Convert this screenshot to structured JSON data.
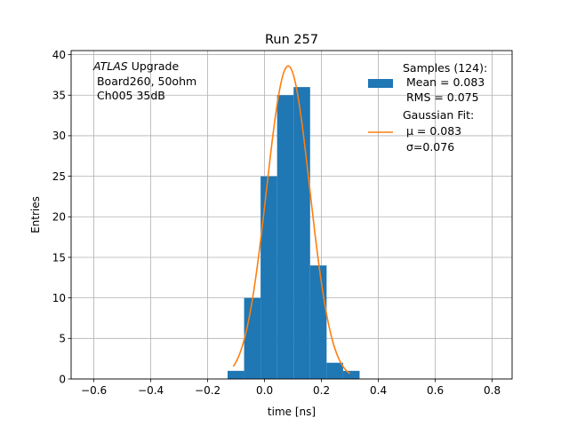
{
  "chart_data": {
    "type": "bar",
    "title": "Run 257",
    "xlabel": "time [ns]",
    "ylabel": "Entries",
    "xlim": [
      -0.68,
      0.87
    ],
    "ylim": [
      0,
      40.5
    ],
    "grid": true,
    "xticks": [
      -0.6,
      -0.4,
      -0.2,
      0.0,
      0.2,
      0.4,
      0.6,
      0.8
    ],
    "xtick_labels": [
      "−0.6",
      "−0.4",
      "−0.2",
      "0.0",
      "0.2",
      "0.4",
      "0.6",
      "0.8"
    ],
    "yticks": [
      0,
      5,
      10,
      15,
      20,
      25,
      30,
      35,
      40
    ],
    "yticks_labels": [
      "0",
      "5",
      "10",
      "15",
      "20",
      "25",
      "30",
      "35",
      "40"
    ],
    "annotation": {
      "italic": "ATLAS",
      "line1_rest": " Upgrade",
      "line2": " Board260, 50ohm",
      "line3": " Ch005 35dB"
    },
    "legend": {
      "placement": "top-right",
      "hist_lines": [
        "Samples (124):",
        " Mean = 0.083",
        " RMS = 0.075"
      ],
      "fit_lines": [
        "Gaussian Fit:",
        " μ = 0.083",
        " σ=0.076"
      ]
    },
    "histogram": {
      "name": "Samples (124):",
      "color": "#1f77b4",
      "bin_edges": [
        -0.13,
        -0.072,
        -0.014,
        0.044,
        0.102,
        0.16,
        0.218,
        0.276,
        0.334
      ],
      "counts": [
        1,
        10,
        25,
        35,
        36,
        14,
        2,
        1
      ]
    },
    "fit": {
      "name": "Gaussian Fit:",
      "color": "#ff7f0e",
      "mu": 0.083,
      "sigma": 0.076,
      "amplitude": 38.6,
      "x_range": [
        -0.11,
        0.3
      ]
    }
  }
}
